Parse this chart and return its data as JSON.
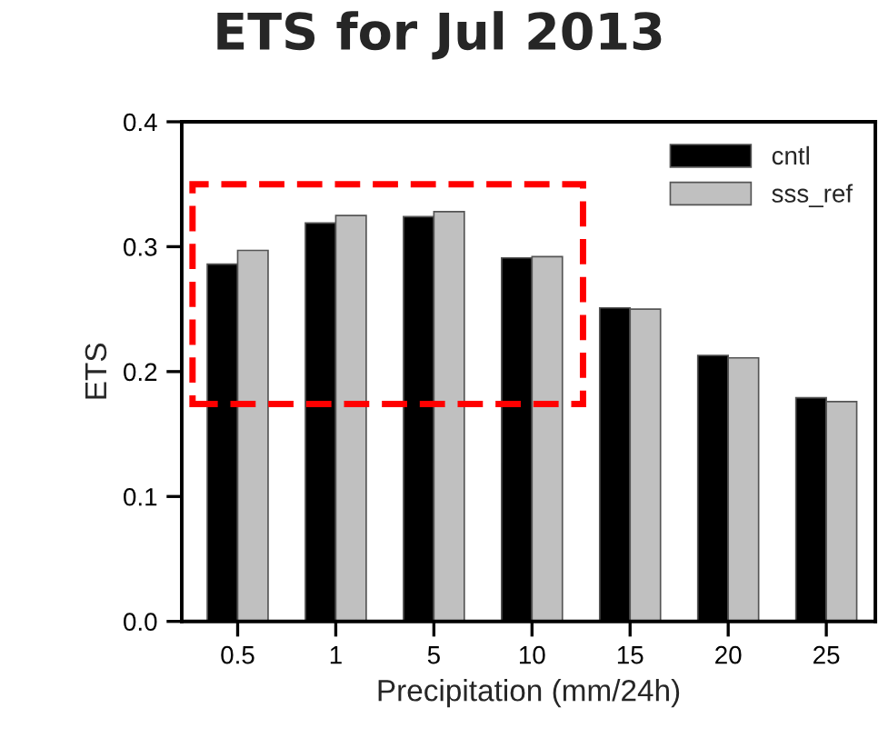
{
  "chart_data": {
    "type": "bar",
    "title": "ETS for Jul 2013",
    "xlabel": "Precipitation (mm/24h)",
    "ylabel": "ETS",
    "categories": [
      "0.5",
      "1",
      "5",
      "10",
      "15",
      "20",
      "25"
    ],
    "series": [
      {
        "name": "cntl",
        "color": "#000000",
        "values": [
          0.286,
          0.319,
          0.324,
          0.291,
          0.251,
          0.213,
          0.179
        ]
      },
      {
        "name": "sss_ref",
        "color": "#c0c0c0",
        "values": [
          0.297,
          0.325,
          0.328,
          0.292,
          0.25,
          0.211,
          0.176
        ]
      }
    ],
    "ylim": [
      0.0,
      0.4
    ],
    "yticks": [
      {
        "value": 0.0,
        "label": "0.0"
      },
      0.1,
      0.2,
      0.3,
      0.4
    ],
    "legend": "top right",
    "grid": false
  }
}
